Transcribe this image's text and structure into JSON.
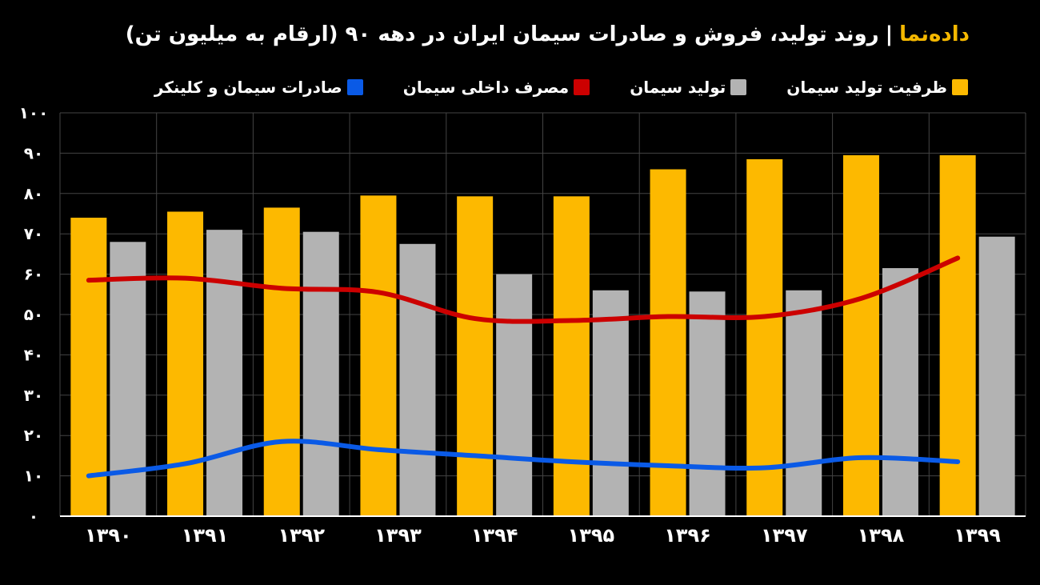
{
  "header": {
    "brand": "داده‌نما",
    "separator": "|",
    "title": "روند تولید، فروش و صادرات سیمان ایران در دهه ۹۰ (ارقام به میلیون تن)"
  },
  "colors": {
    "capacity": "#fdb900",
    "production": "#b3b3b3",
    "consumption": "#cc0000",
    "exports": "#0a5ae6"
  },
  "chart_data": {
    "type": "bar",
    "categories": [
      "۱۳۹۰",
      "۱۳۹۱",
      "۱۳۹۲",
      "۱۳۹۳",
      "۱۳۹۴",
      "۱۳۹۵",
      "۱۳۹۶",
      "۱۳۹۷",
      "۱۳۹۸",
      "۱۳۹۹"
    ],
    "ylim": [
      0,
      100
    ],
    "yticks": [
      0,
      10,
      20,
      30,
      40,
      50,
      60,
      70,
      80,
      90,
      100
    ],
    "ytick_labels": [
      "۰",
      "۱۰",
      "۲۰",
      "۳۰",
      "۴۰",
      "۵۰",
      "۶۰",
      "۷۰",
      "۸۰",
      "۹۰",
      "۱۰۰"
    ],
    "grid": true,
    "legend_position": "top",
    "series": [
      {
        "name": "ظرفیت تولید سیمان",
        "kind": "bar",
        "color": "#fdb900",
        "values": [
          74,
          75.5,
          76.5,
          79.5,
          79.3,
          79.3,
          86,
          88.5,
          89.5,
          89.5
        ]
      },
      {
        "name": "تولید سیمان",
        "kind": "bar",
        "color": "#b3b3b3",
        "values": [
          68,
          71,
          70.5,
          67.5,
          60,
          56,
          55.7,
          56,
          61.5,
          69.3
        ]
      },
      {
        "name": "مصرف داخلی سیمان",
        "kind": "line",
        "color": "#cc0000",
        "values": [
          58.5,
          59,
          56.5,
          55.5,
          49,
          48.5,
          49.5,
          49.5,
          54,
          64
        ]
      },
      {
        "name": "صادرات سیمان و کلینکر",
        "kind": "line",
        "color": "#0a5ae6",
        "values": [
          10,
          13,
          18.5,
          16.5,
          15,
          13.5,
          12.5,
          12,
          14.5,
          13.5
        ]
      }
    ]
  }
}
